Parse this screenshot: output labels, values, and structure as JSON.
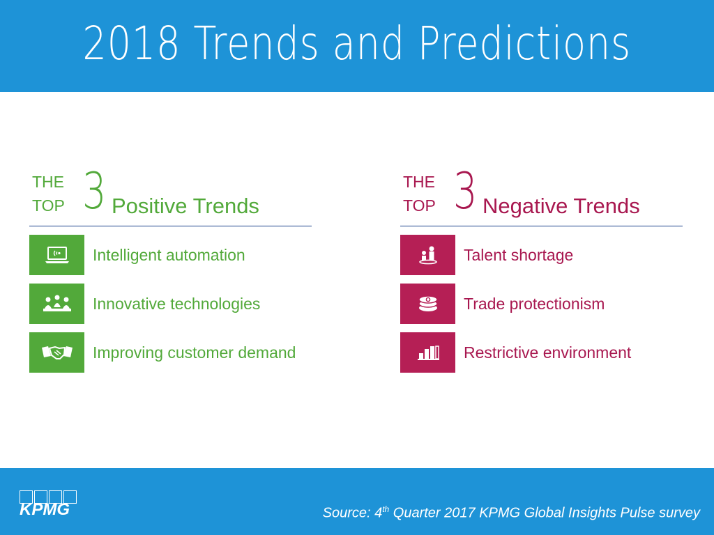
{
  "header": {
    "title": "2018 Trends and Predictions"
  },
  "positive": {
    "the": "THE",
    "top": "TOP",
    "number": "3",
    "title": "Positive Trends",
    "items": [
      {
        "label": "Intelligent automation",
        "icon": "laptop-signal-icon"
      },
      {
        "label": "Innovative technologies",
        "icon": "meeting-people-icon"
      },
      {
        "label": "Improving customer demand",
        "icon": "handshake-icon"
      }
    ]
  },
  "negative": {
    "the": "THE",
    "top": "TOP",
    "number": "3",
    "title": "Negative Trends",
    "items": [
      {
        "label": "Talent shortage",
        "icon": "people-icon"
      },
      {
        "label": "Trade protectionism",
        "icon": "money-stack-icon"
      },
      {
        "label": "Restrictive environment",
        "icon": "bar-chart-icon"
      }
    ]
  },
  "footer": {
    "logo": "KPMG",
    "source_prefix": "Source: 4",
    "source_sup": "th",
    "source_suffix": " Quarter 2017 KPMG Global Insights Pulse survey"
  },
  "colors": {
    "brand_blue": "#1e93d7",
    "positive_green": "#52a93a",
    "negative_magenta": "#b51f55"
  }
}
